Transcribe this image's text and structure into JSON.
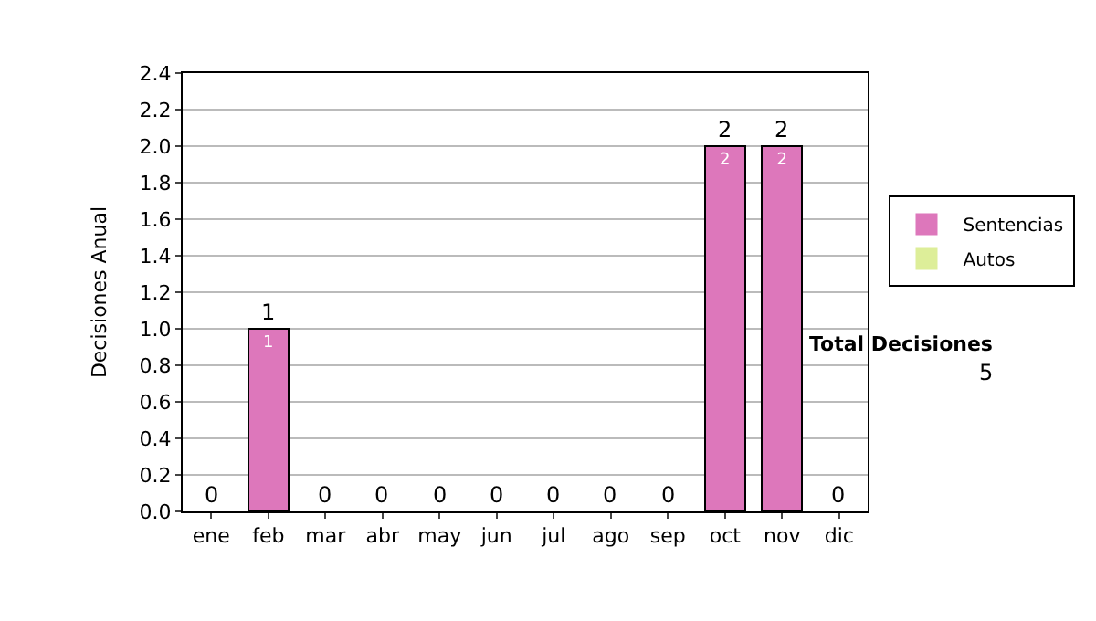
{
  "chart_data": {
    "type": "bar",
    "stacked": true,
    "ylabel": "Decisiones Anual",
    "categories": [
      "ene",
      "feb",
      "mar",
      "abr",
      "may",
      "jun",
      "jul",
      "ago",
      "sep",
      "oct",
      "nov",
      "dic"
    ],
    "series": [
      {
        "name": "Sentencias",
        "color": "#dd77bb",
        "values": [
          0,
          1,
          0,
          0,
          0,
          0,
          0,
          0,
          0,
          2,
          2,
          0
        ],
        "value_labels": [
          null,
          "1",
          null,
          null,
          null,
          null,
          null,
          null,
          null,
          "2",
          "2",
          null
        ]
      },
      {
        "name": "Autos",
        "color": "#ddee99",
        "values": [
          0,
          0,
          0,
          0,
          0,
          0,
          0,
          0,
          0,
          0,
          0,
          0
        ]
      }
    ],
    "totals": [
      "0",
      "1",
      "0",
      "0",
      "0",
      "0",
      "0",
      "0",
      "0",
      "2",
      "2",
      "0"
    ],
    "ylim": [
      0,
      2.4
    ],
    "yticks": [
      "0.0",
      "0.2",
      "0.4",
      "0.6",
      "0.8",
      "1.0",
      "1.2",
      "1.4",
      "1.6",
      "1.8",
      "2.0",
      "2.2",
      "2.4"
    ],
    "grid": "y",
    "legend": "right",
    "annotations": [
      "Total Decisiones",
      "5"
    ]
  }
}
